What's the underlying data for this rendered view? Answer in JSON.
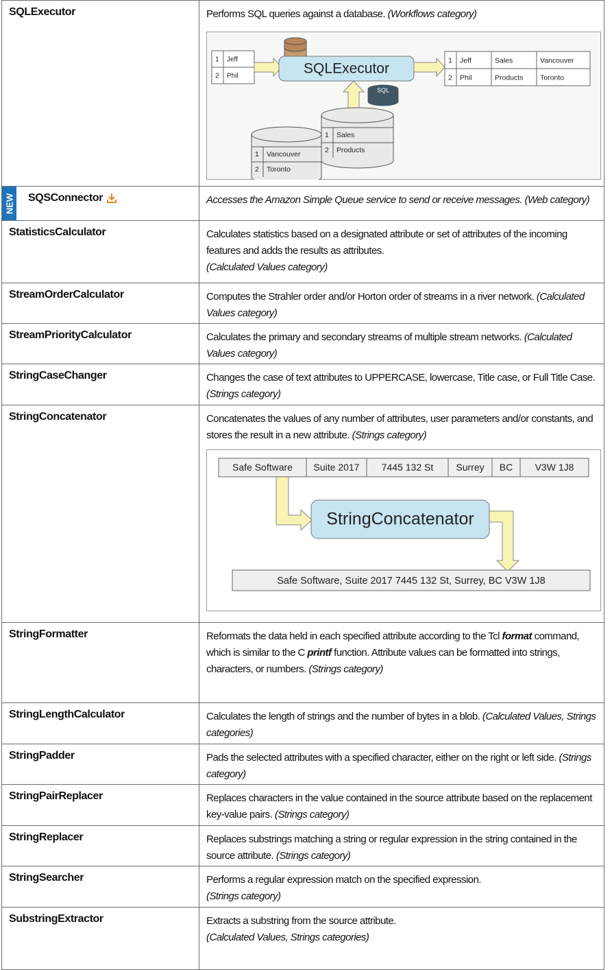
{
  "table": {
    "rows": [
      {
        "name": "SQLExecutor",
        "description": [
          "Performs SQL queries against a database."
        ],
        "category": "(Workflows category)",
        "diagram": {
          "input_rows": [
            [
              "1",
              "Jeff"
            ],
            [
              "2",
              "Phil"
            ]
          ],
          "transformer": "SQLExecutor",
          "output_rows": [
            [
              "1",
              "Jeff",
              "Sales",
              "Vancouver"
            ],
            [
              "2",
              "Phil",
              "Products",
              "Toronto"
            ]
          ],
          "query_label": "SQL",
          "source_tables": [
            [
              [
                "1",
                "Sales"
              ],
              [
                "2",
                "Products"
              ]
            ],
            [
              [
                "1",
                "Vancouver"
              ],
              [
                "2",
                "Toronto"
              ]
            ]
          ]
        }
      },
      {
        "name": "SQSConnector",
        "badge": "NEW",
        "italic": true,
        "description": [
          "Accesses the Amazon Simple Queue service to send or receive messages."
        ],
        "category": "(Web category)"
      },
      {
        "name": "StatisticsCalculator",
        "description": [
          "Calculates statistics based on a designated attribute or set of attributes of the incoming features and adds the results as attributes."
        ],
        "category": "(Calculated Values category)"
      },
      {
        "name": "StreamOrderCalculator",
        "description": [
          "Computes the Strahler order and/or Horton order of streams in a river network."
        ],
        "category": "(Calculated Values category)"
      },
      {
        "name": "StreamPriorityCalculator",
        "description": [
          "Calculates the primary and secondary streams of multiple stream networks."
        ],
        "category": "(Calculated Values category)"
      },
      {
        "name": "StringCaseChanger",
        "description": [
          "Changes the case of text attributes to UPPERCASE, lowercase, Title case, or Full Title Case."
        ],
        "category": "(Strings category)"
      },
      {
        "name": "StringConcatenator",
        "description": [
          "Concatenates the values of any number of attributes, user parameters and/or constants, and stores the result in a new attribute."
        ],
        "category": "(Strings category)",
        "diagram": {
          "input_fields": [
            "Safe Software",
            "Suite 2017",
            "7445 132 St",
            "Surrey",
            "BC",
            "V3W 1J8"
          ],
          "transformer": "StringConcatenator",
          "output": "Safe Software, Suite 2017 7445 132 St, Surrey, BC V3W 1J8"
        }
      },
      {
        "name": "StringFormatter",
        "description": [
          "Reformats the data held in each specified attribute according to the Tcl ",
          "format",
          " command, which is similar to the C ",
          "printf",
          " function. Attribute values can be formatted into strings, characters, or numbers."
        ],
        "category": "(Strings category)"
      },
      {
        "name": "StringLengthCalculator",
        "description": [
          "Calculates the length of strings and the number of bytes in a blob."
        ],
        "category": "(Calculated Values, Strings categories)"
      },
      {
        "name": "StringPadder",
        "description": [
          "Pads the selected attributes with a specified character, either on the right or left side."
        ],
        "category": "(Strings category)"
      },
      {
        "name": "StringPairReplacer",
        "description": [
          "Replaces characters in the value contained in the source attribute based on the replacement key-value pairs."
        ],
        "category": "(Strings category)"
      },
      {
        "name": "StringReplacer",
        "description": [
          "Replaces substrings matching a string or regular expression in the string contained in the source attribute."
        ],
        "category": "(Strings category)"
      },
      {
        "name": "StringSearcher",
        "description": [
          "Performs a regular expression match on the specified expression."
        ],
        "category": "(Strings category)"
      },
      {
        "name": "SubstringExtractor",
        "description": [
          "Extracts a substring from the source attribute."
        ],
        "category": "(Calculated Values, Strings categories)"
      }
    ]
  }
}
